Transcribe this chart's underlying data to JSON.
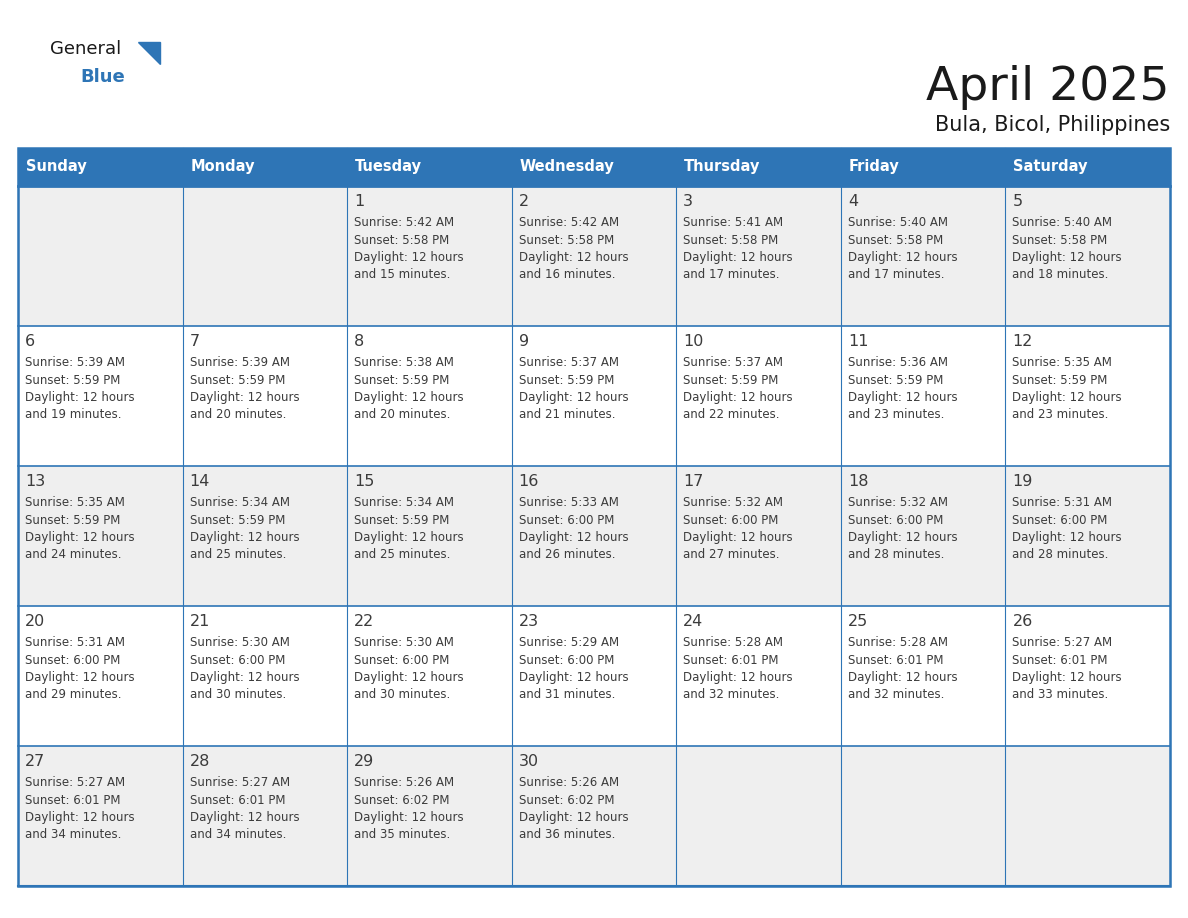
{
  "title": "April 2025",
  "subtitle": "Bula, Bicol, Philippines",
  "days_of_week": [
    "Sunday",
    "Monday",
    "Tuesday",
    "Wednesday",
    "Thursday",
    "Friday",
    "Saturday"
  ],
  "header_bg": "#2E75B6",
  "header_text_color": "#FFFFFF",
  "cell_bg_odd": "#EFEFEF",
  "cell_bg_even": "#FFFFFF",
  "grid_line_color": "#2E75B6",
  "text_color": "#3C3C3C",
  "title_color": "#1A1A1A",
  "logo_general_color": "#1A1A1A",
  "logo_blue_color": "#2E75B6",
  "calendar_data": [
    [
      {
        "day": "",
        "sunrise": "",
        "sunset": "",
        "daylight": ""
      },
      {
        "day": "",
        "sunrise": "",
        "sunset": "",
        "daylight": ""
      },
      {
        "day": "1",
        "sunrise": "5:42 AM",
        "sunset": "5:58 PM",
        "daylight": "and 15 minutes."
      },
      {
        "day": "2",
        "sunrise": "5:42 AM",
        "sunset": "5:58 PM",
        "daylight": "and 16 minutes."
      },
      {
        "day": "3",
        "sunrise": "5:41 AM",
        "sunset": "5:58 PM",
        "daylight": "and 17 minutes."
      },
      {
        "day": "4",
        "sunrise": "5:40 AM",
        "sunset": "5:58 PM",
        "daylight": "and 17 minutes."
      },
      {
        "day": "5",
        "sunrise": "5:40 AM",
        "sunset": "5:58 PM",
        "daylight": "and 18 minutes."
      }
    ],
    [
      {
        "day": "6",
        "sunrise": "5:39 AM",
        "sunset": "5:59 PM",
        "daylight": "and 19 minutes."
      },
      {
        "day": "7",
        "sunrise": "5:39 AM",
        "sunset": "5:59 PM",
        "daylight": "and 20 minutes."
      },
      {
        "day": "8",
        "sunrise": "5:38 AM",
        "sunset": "5:59 PM",
        "daylight": "and 20 minutes."
      },
      {
        "day": "9",
        "sunrise": "5:37 AM",
        "sunset": "5:59 PM",
        "daylight": "and 21 minutes."
      },
      {
        "day": "10",
        "sunrise": "5:37 AM",
        "sunset": "5:59 PM",
        "daylight": "and 22 minutes."
      },
      {
        "day": "11",
        "sunrise": "5:36 AM",
        "sunset": "5:59 PM",
        "daylight": "and 23 minutes."
      },
      {
        "day": "12",
        "sunrise": "5:35 AM",
        "sunset": "5:59 PM",
        "daylight": "and 23 minutes."
      }
    ],
    [
      {
        "day": "13",
        "sunrise": "5:35 AM",
        "sunset": "5:59 PM",
        "daylight": "and 24 minutes."
      },
      {
        "day": "14",
        "sunrise": "5:34 AM",
        "sunset": "5:59 PM",
        "daylight": "and 25 minutes."
      },
      {
        "day": "15",
        "sunrise": "5:34 AM",
        "sunset": "5:59 PM",
        "daylight": "and 25 minutes."
      },
      {
        "day": "16",
        "sunrise": "5:33 AM",
        "sunset": "6:00 PM",
        "daylight": "and 26 minutes."
      },
      {
        "day": "17",
        "sunrise": "5:32 AM",
        "sunset": "6:00 PM",
        "daylight": "and 27 minutes."
      },
      {
        "day": "18",
        "sunrise": "5:32 AM",
        "sunset": "6:00 PM",
        "daylight": "and 28 minutes."
      },
      {
        "day": "19",
        "sunrise": "5:31 AM",
        "sunset": "6:00 PM",
        "daylight": "and 28 minutes."
      }
    ],
    [
      {
        "day": "20",
        "sunrise": "5:31 AM",
        "sunset": "6:00 PM",
        "daylight": "and 29 minutes."
      },
      {
        "day": "21",
        "sunrise": "5:30 AM",
        "sunset": "6:00 PM",
        "daylight": "and 30 minutes."
      },
      {
        "day": "22",
        "sunrise": "5:30 AM",
        "sunset": "6:00 PM",
        "daylight": "and 30 minutes."
      },
      {
        "day": "23",
        "sunrise": "5:29 AM",
        "sunset": "6:00 PM",
        "daylight": "and 31 minutes."
      },
      {
        "day": "24",
        "sunrise": "5:28 AM",
        "sunset": "6:01 PM",
        "daylight": "and 32 minutes."
      },
      {
        "day": "25",
        "sunrise": "5:28 AM",
        "sunset": "6:01 PM",
        "daylight": "and 32 minutes."
      },
      {
        "day": "26",
        "sunrise": "5:27 AM",
        "sunset": "6:01 PM",
        "daylight": "and 33 minutes."
      }
    ],
    [
      {
        "day": "27",
        "sunrise": "5:27 AM",
        "sunset": "6:01 PM",
        "daylight": "and 34 minutes."
      },
      {
        "day": "28",
        "sunrise": "5:27 AM",
        "sunset": "6:01 PM",
        "daylight": "and 34 minutes."
      },
      {
        "day": "29",
        "sunrise": "5:26 AM",
        "sunset": "6:02 PM",
        "daylight": "and 35 minutes."
      },
      {
        "day": "30",
        "sunrise": "5:26 AM",
        "sunset": "6:02 PM",
        "daylight": "and 36 minutes."
      },
      {
        "day": "",
        "sunrise": "",
        "sunset": "",
        "daylight": ""
      },
      {
        "day": "",
        "sunrise": "",
        "sunset": "",
        "daylight": ""
      },
      {
        "day": "",
        "sunrise": "",
        "sunset": "",
        "daylight": ""
      }
    ]
  ]
}
